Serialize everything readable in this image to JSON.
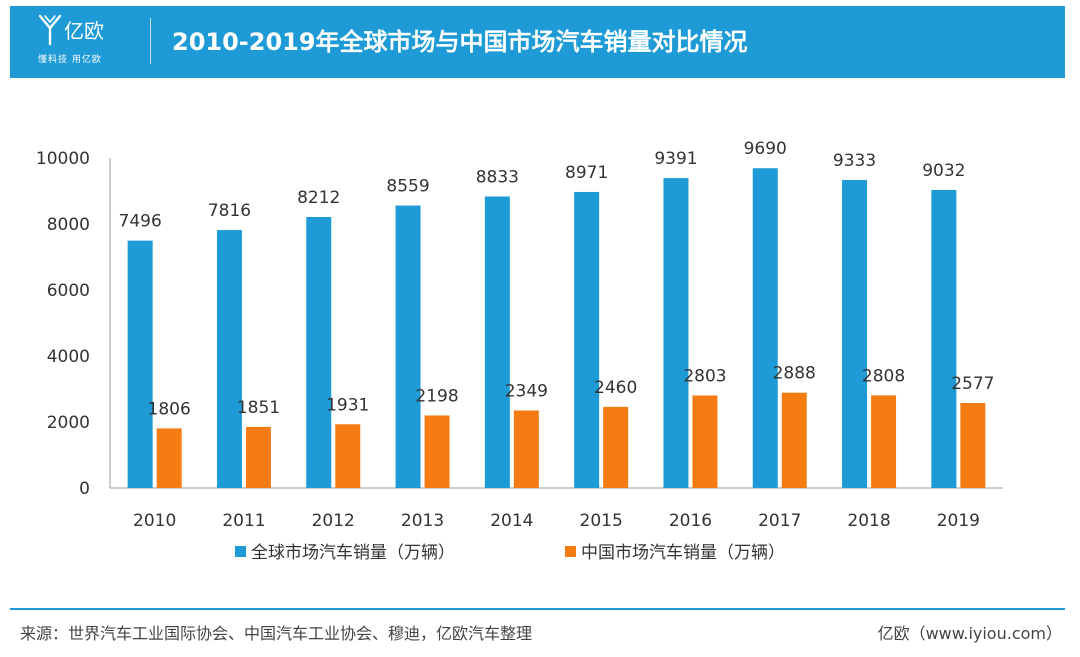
{
  "header": {
    "logo_name": "亿欧",
    "logo_slogan": "懂科技 用亿欧",
    "title": "2010-2019年全球市场与中国市场汽车销量对比情况"
  },
  "colors": {
    "global": "#1e9bd7",
    "china": "#f57c12",
    "header": "#1e9bd7"
  },
  "chart_data": {
    "type": "bar",
    "categories": [
      "2010",
      "2011",
      "2012",
      "2013",
      "2014",
      "2015",
      "2016",
      "2017",
      "2018",
      "2019"
    ],
    "series": [
      {
        "name": "全球市场汽车销量（万辆）",
        "values": [
          7496,
          7816,
          8212,
          8559,
          8833,
          8971,
          9391,
          9690,
          9333,
          9032
        ]
      },
      {
        "name": "中国市场汽车销量（万辆）",
        "values": [
          1806,
          1851,
          1931,
          2198,
          2349,
          2460,
          2803,
          2888,
          2808,
          2577
        ]
      }
    ],
    "ylim": [
      0,
      10000
    ],
    "yticks": [
      "0",
      "2000",
      "4000",
      "6000",
      "8000",
      "10000"
    ],
    "grid": false,
    "legend_position": "bottom"
  },
  "footer": {
    "source": "来源：世界汽车工业国际协会、中国汽车工业协会、穆迪，亿欧汽车整理",
    "credit": "亿欧（www.iyiou.com）"
  }
}
